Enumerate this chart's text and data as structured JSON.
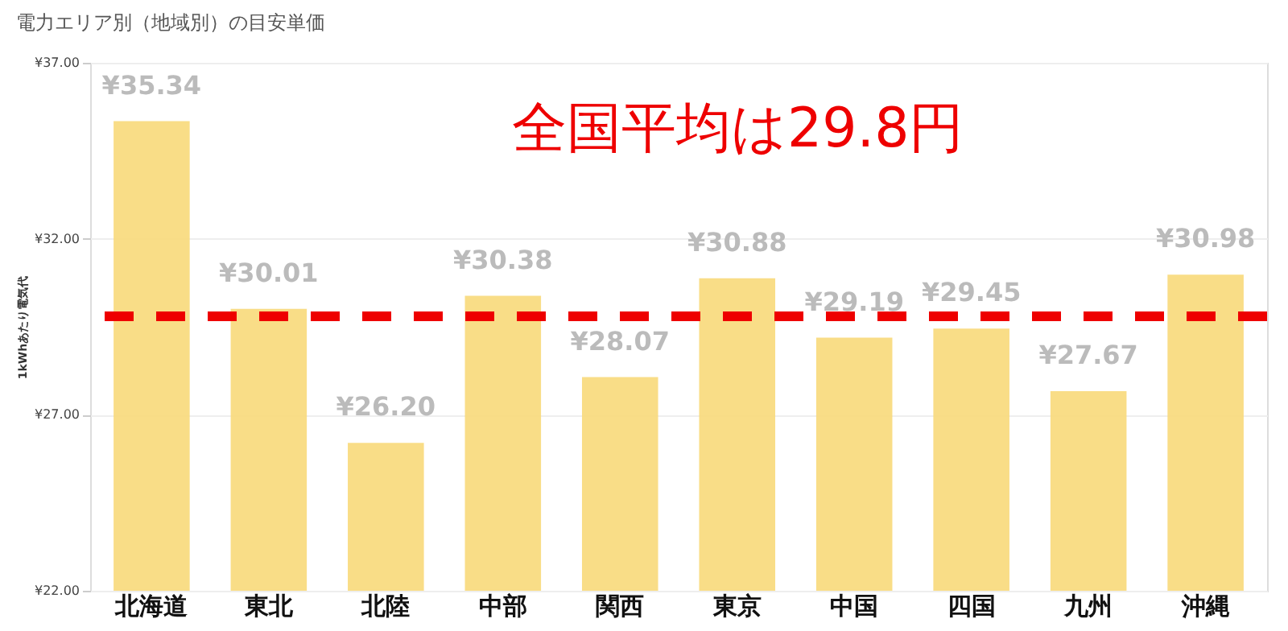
{
  "chart_data": {
    "type": "bar",
    "title": "電力エリア別（地域別）の目安単価",
    "ylabel": "1kWhあたり電気代",
    "categories": [
      "北海道",
      "東北",
      "北陸",
      "中部",
      "関西",
      "東京",
      "中国",
      "四国",
      "九州",
      "沖縄"
    ],
    "values": [
      35.34,
      30.01,
      26.2,
      30.38,
      28.07,
      30.88,
      29.19,
      29.45,
      27.67,
      30.98
    ],
    "value_labels": [
      "¥35.34",
      "¥30.01",
      "¥26.20",
      "¥30.38",
      "¥28.07",
      "¥30.88",
      "¥29.19",
      "¥29.45",
      "¥27.67",
      "¥30.98"
    ],
    "color": "#f8d97a",
    "ylim": [
      22,
      37
    ],
    "yticks": [
      {
        "value": 22,
        "label": "¥22.00"
      },
      {
        "value": 27,
        "label": "¥27.00"
      },
      {
        "value": 32,
        "label": "¥32.00"
      },
      {
        "value": 37,
        "label": "¥37.00"
      }
    ],
    "grid": "y",
    "ref_lines": [
      {
        "axis": "y",
        "value": 29.8,
        "label": "全国平均は29.8円",
        "color": "#ee0000",
        "line_style": "dashed"
      }
    ]
  }
}
